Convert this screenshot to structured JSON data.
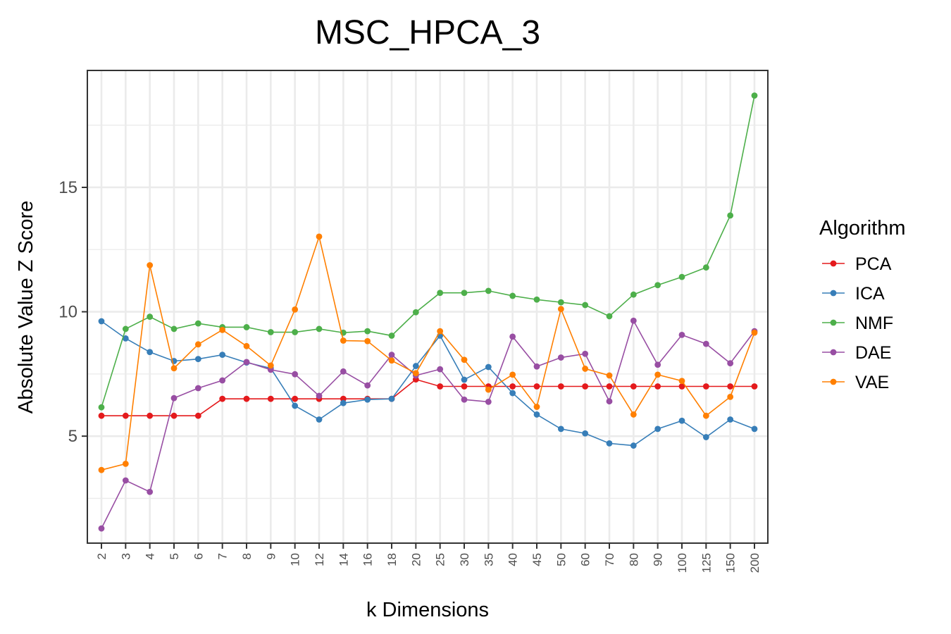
{
  "chart_data": {
    "type": "line",
    "title": "MSC_HPCA_3",
    "xlabel": "k Dimensions",
    "ylabel": "Absolute Value Z Score",
    "categories": [
      "2",
      "3",
      "4",
      "5",
      "6",
      "7",
      "8",
      "9",
      "10",
      "12",
      "14",
      "16",
      "18",
      "20",
      "25",
      "30",
      "35",
      "40",
      "45",
      "50",
      "60",
      "70",
      "80",
      "90",
      "100",
      "125",
      "150",
      "200"
    ],
    "ylim": [
      0.7,
      19.7
    ],
    "yticks": [
      5,
      10,
      15
    ],
    "grid": true,
    "legend_title": "Algorithm",
    "legend_position": "right",
    "series": [
      {
        "name": "PCA",
        "color": "#E41A1C",
        "values": [
          5.82,
          5.82,
          5.82,
          5.82,
          5.82,
          6.5,
          6.5,
          6.5,
          6.5,
          6.5,
          6.5,
          6.5,
          6.5,
          7.28,
          7.0,
          7.0,
          7.0,
          7.0,
          7.0,
          7.0,
          7.0,
          7.0,
          7.0,
          7.0,
          7.0,
          7.0,
          7.0,
          7.0
        ]
      },
      {
        "name": "ICA",
        "color": "#377EB8",
        "values": [
          9.62,
          8.93,
          8.38,
          8.02,
          8.1,
          8.27,
          7.96,
          7.73,
          6.22,
          5.67,
          6.33,
          6.47,
          6.5,
          7.82,
          9.04,
          7.27,
          7.78,
          6.73,
          5.87,
          5.29,
          5.11,
          4.71,
          4.62,
          5.29,
          5.62,
          4.96,
          5.67,
          5.29
        ]
      },
      {
        "name": "NMF",
        "color": "#4DAF4A",
        "values": [
          6.16,
          9.31,
          9.8,
          9.31,
          9.53,
          9.38,
          9.38,
          9.18,
          9.18,
          9.31,
          9.16,
          9.22,
          9.04,
          9.98,
          10.76,
          10.76,
          10.84,
          10.64,
          10.49,
          10.38,
          10.27,
          9.82,
          10.69,
          11.07,
          11.4,
          11.78,
          13.87,
          18.69
        ]
      },
      {
        "name": "DAE",
        "color": "#984EA3",
        "values": [
          1.29,
          3.22,
          2.76,
          6.53,
          6.93,
          7.24,
          7.98,
          7.67,
          7.49,
          6.62,
          7.6,
          7.04,
          8.27,
          7.44,
          7.69,
          6.47,
          6.38,
          9.0,
          7.8,
          8.16,
          8.31,
          6.4,
          9.64,
          7.87,
          9.07,
          8.71,
          7.93,
          9.22
        ]
      },
      {
        "name": "VAE",
        "color": "#FF7F00",
        "values": [
          3.64,
          3.89,
          11.87,
          7.73,
          8.69,
          9.27,
          8.62,
          7.84,
          10.09,
          13.02,
          8.84,
          8.82,
          8.04,
          7.53,
          9.22,
          8.07,
          6.87,
          7.47,
          6.18,
          10.11,
          7.71,
          7.44,
          5.87,
          7.47,
          7.22,
          5.82,
          6.58,
          9.16
        ]
      }
    ]
  }
}
